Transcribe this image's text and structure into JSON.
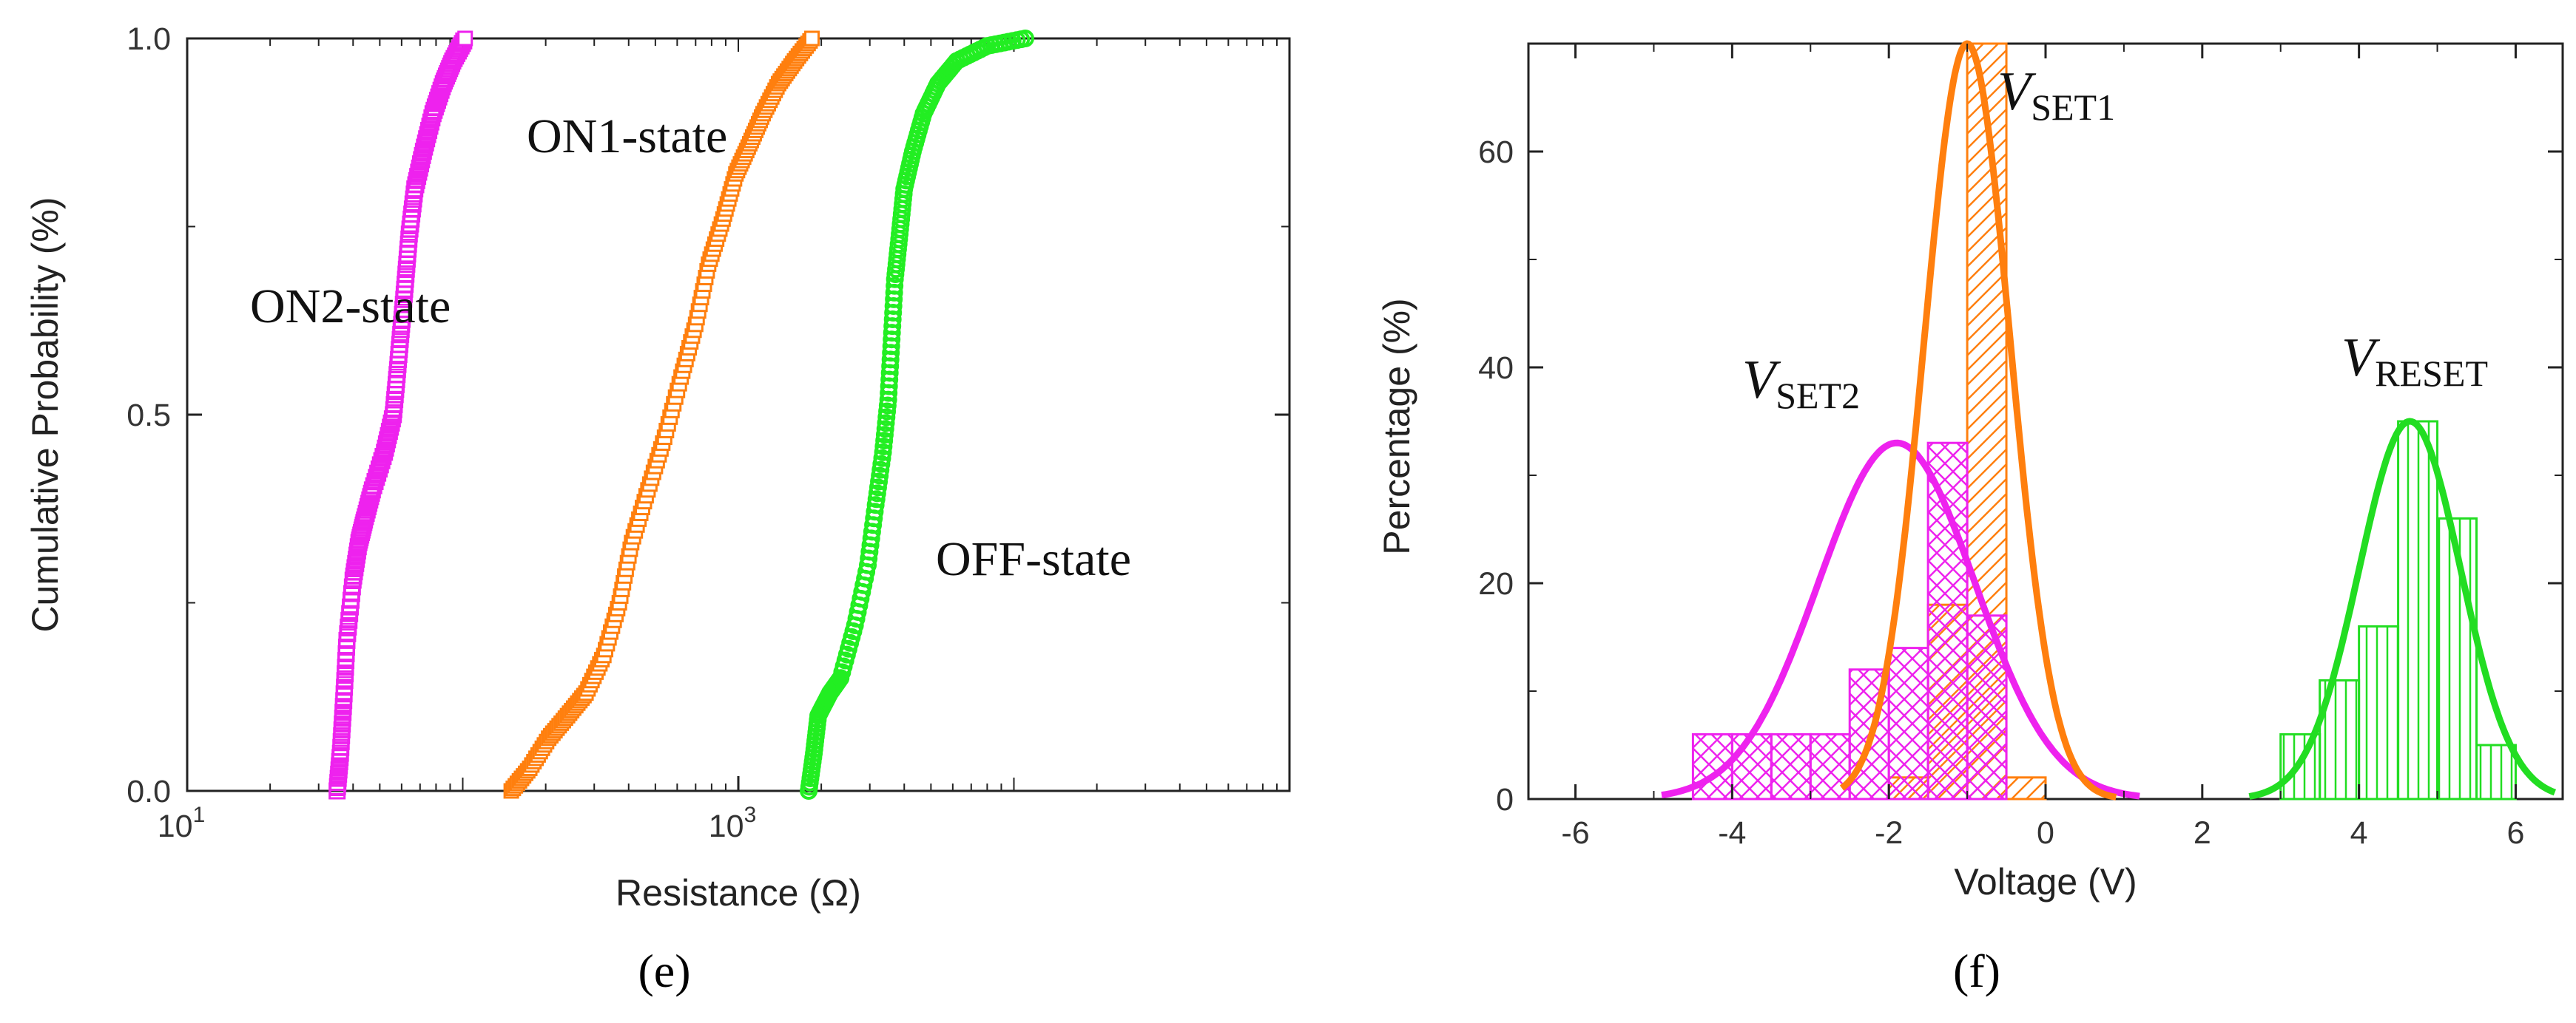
{
  "chart_data": [
    {
      "type": "scatter",
      "panel_caption": "(e)",
      "xlabel": "Resistance (Ω)",
      "ylabel": "Cumulative Probability (%)",
      "xscale": "log",
      "xlim": [
        10,
        100000
      ],
      "ylim": [
        0,
        1
      ],
      "xticks": [
        {
          "value": 10,
          "base": "10",
          "exp": "1"
        },
        {
          "value": 1000,
          "base": "10",
          "exp": "3"
        }
      ],
      "yticks": [
        {
          "value": 0,
          "label": "0.0"
        },
        {
          "value": 0.5,
          "label": "0.5"
        },
        {
          "value": 1,
          "label": "1.0"
        }
      ],
      "series": [
        {
          "name": "ON2-state",
          "color": "#ee22ee",
          "marker": "hatched-square",
          "points": [
            [
              35,
              0
            ],
            [
              36,
              0.05
            ],
            [
              37,
              0.12
            ],
            [
              38,
              0.2
            ],
            [
              40,
              0.28
            ],
            [
              42,
              0.33
            ],
            [
              44,
              0.36
            ],
            [
              47,
              0.4
            ],
            [
              52,
              0.45
            ],
            [
              56,
              0.5
            ],
            [
              58,
              0.56
            ],
            [
              60,
              0.62
            ],
            [
              62,
              0.68
            ],
            [
              64,
              0.74
            ],
            [
              67,
              0.8
            ],
            [
              72,
              0.85
            ],
            [
              78,
              0.9
            ],
            [
              85,
              0.94
            ],
            [
              92,
              0.97
            ],
            [
              102,
              1.0
            ]
          ]
        },
        {
          "name": "ON1-state",
          "color": "#ff7f0e",
          "marker": "open-square",
          "points": [
            [
              150,
              0
            ],
            [
              175,
              0.03
            ],
            [
              205,
              0.07
            ],
            [
              240,
              0.1
            ],
            [
              280,
              0.13
            ],
            [
              325,
              0.18
            ],
            [
              370,
              0.25
            ],
            [
              410,
              0.33
            ],
            [
              470,
              0.4
            ],
            [
              540,
              0.47
            ],
            [
              620,
              0.55
            ],
            [
              700,
              0.62
            ],
            [
              780,
              0.7
            ],
            [
              880,
              0.76
            ],
            [
              980,
              0.82
            ],
            [
              1100,
              0.86
            ],
            [
              1230,
              0.9
            ],
            [
              1400,
              0.94
            ],
            [
              1600,
              0.97
            ],
            [
              1850,
              1.0
            ]
          ]
        },
        {
          "name": "OFF-state",
          "color": "#22ee22",
          "marker": "circle",
          "points": [
            [
              1800,
              0
            ],
            [
              1880,
              0.05
            ],
            [
              1950,
              0.1
            ],
            [
              2150,
              0.13
            ],
            [
              2350,
              0.15
            ],
            [
              2650,
              0.22
            ],
            [
              2950,
              0.3
            ],
            [
              3150,
              0.38
            ],
            [
              3350,
              0.45
            ],
            [
              3500,
              0.52
            ],
            [
              3600,
              0.6
            ],
            [
              3700,
              0.68
            ],
            [
              3850,
              0.74
            ],
            [
              4000,
              0.8
            ],
            [
              4300,
              0.85
            ],
            [
              4700,
              0.9
            ],
            [
              5300,
              0.94
            ],
            [
              6200,
              0.97
            ],
            [
              8000,
              0.99
            ],
            [
              11000,
              1.0
            ]
          ]
        }
      ],
      "annotations": [
        "ON2-state",
        "ON1-state",
        "OFF-state"
      ]
    },
    {
      "type": "bar",
      "panel_caption": "(f)",
      "xlabel": "Voltage (V)",
      "ylabel": "Percentage (%)",
      "xlim": [
        -6.6,
        6.6
      ],
      "ylim": [
        0,
        70
      ],
      "xticks": [
        {
          "value": -6,
          "label": "-6"
        },
        {
          "value": -4,
          "label": "-4"
        },
        {
          "value": -2,
          "label": "-2"
        },
        {
          "value": 0,
          "label": "0"
        },
        {
          "value": 2,
          "label": "2"
        },
        {
          "value": 4,
          "label": "4"
        },
        {
          "value": 6,
          "label": "6"
        }
      ],
      "yticks": [
        {
          "value": 0,
          "label": "0"
        },
        {
          "value": 20,
          "label": "20"
        },
        {
          "value": 40,
          "label": "40"
        },
        {
          "value": 60,
          "label": "60"
        }
      ],
      "series": [
        {
          "name": "V_SET2",
          "label_main": "V",
          "label_sub": "SET2",
          "color": "#ee22ee",
          "pattern": "crosshatch",
          "bin_width": 0.5,
          "bins": [
            [
              -4.25,
              6
            ],
            [
              -3.75,
              6
            ],
            [
              -3.25,
              6
            ],
            [
              -2.75,
              6
            ],
            [
              -2.25,
              12
            ],
            [
              -1.75,
              14
            ],
            [
              -1.25,
              33
            ],
            [
              -0.75,
              17
            ]
          ],
          "fit": {
            "mean": -1.9,
            "sigma": 1.0,
            "peak": 33,
            "range": [
              -4.9,
              1.2
            ]
          }
        },
        {
          "name": "V_SET1",
          "label_main": "V",
          "label_sub": "SET1",
          "color": "#ff7f0e",
          "pattern": "diagonal",
          "bin_width": 0.5,
          "bins": [
            [
              -1.75,
              2
            ],
            [
              -1.25,
              18
            ],
            [
              -0.75,
              70
            ],
            [
              -0.25,
              2
            ]
          ],
          "fit": {
            "mean": -1.0,
            "sigma": 0.55,
            "peak": 70,
            "range": [
              -2.6,
              0.9
            ]
          }
        },
        {
          "name": "V_RESET",
          "label_main": "V",
          "label_sub": "RESET",
          "color": "#22dd22",
          "pattern": "vertical",
          "bin_width": 0.5,
          "bins": [
            [
              3.25,
              6
            ],
            [
              3.75,
              11
            ],
            [
              4.25,
              16
            ],
            [
              4.75,
              35
            ],
            [
              5.25,
              26
            ],
            [
              5.75,
              5
            ]
          ],
          "fit": {
            "mean": 4.65,
            "sigma": 0.65,
            "peak": 35,
            "range": [
              2.6,
              6.5
            ]
          }
        }
      ]
    }
  ]
}
